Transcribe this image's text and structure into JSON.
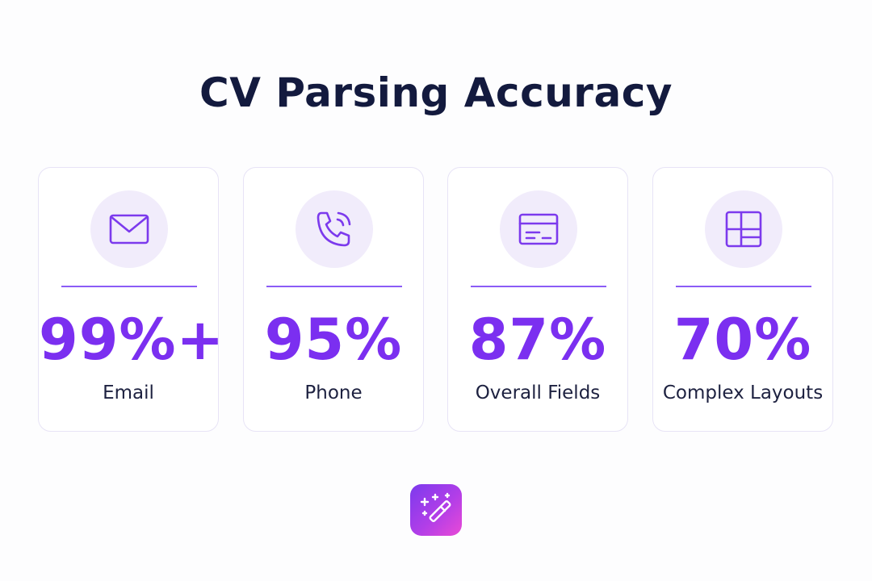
{
  "header": {
    "title": "CV Parsing Accuracy"
  },
  "cards": [
    {
      "value": "99%+",
      "label": "Email"
    },
    {
      "value": "95%",
      "label": "Phone"
    },
    {
      "value": "87%",
      "label": "Overall Fields"
    },
    {
      "value": "70%",
      "label": "Complex Layouts"
    }
  ]
}
